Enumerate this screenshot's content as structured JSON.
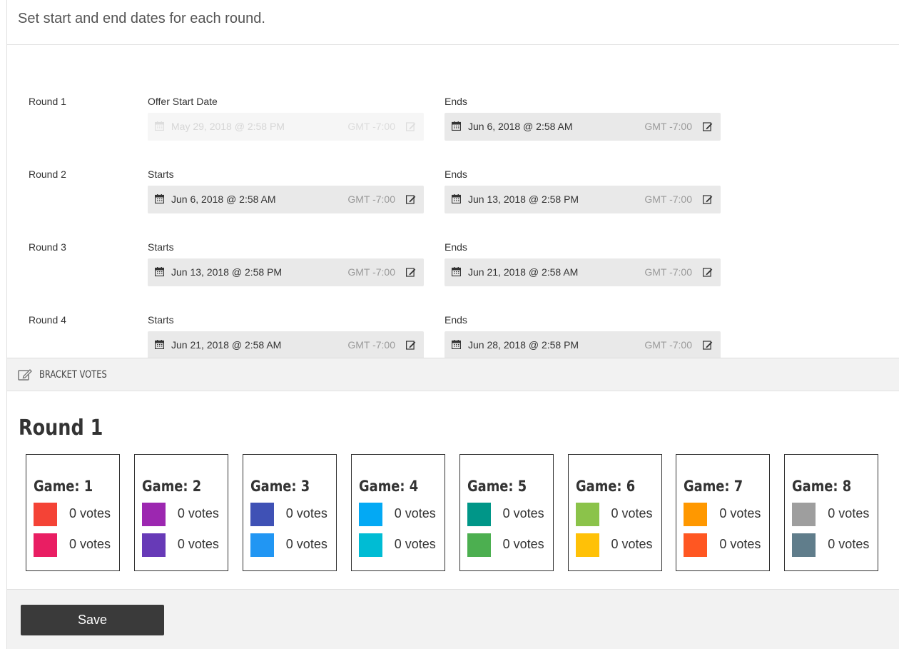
{
  "intro": {
    "text": "Set start and end dates for each round."
  },
  "rounds": [
    {
      "label": "Round 1",
      "start_label": "Offer Start Date",
      "start_date": "May 29, 2018 @ 2:58 PM",
      "start_tz": "GMT -7:00",
      "start_disabled": true,
      "end_label": "Ends",
      "end_date": "Jun 6, 2018 @ 2:58 AM",
      "end_tz": "GMT -7:00"
    },
    {
      "label": "Round 2",
      "start_label": "Starts",
      "start_date": "Jun 6, 2018 @ 2:58 AM",
      "start_tz": "GMT -7:00",
      "end_label": "Ends",
      "end_date": "Jun 13, 2018 @ 2:58 PM",
      "end_tz": "GMT -7:00"
    },
    {
      "label": "Round 3",
      "start_label": "Starts",
      "start_date": "Jun 13, 2018 @ 2:58 PM",
      "start_tz": "GMT -7:00",
      "end_label": "Ends",
      "end_date": "Jun 21, 2018 @ 2:58 AM",
      "end_tz": "GMT -7:00"
    },
    {
      "label": "Round 4",
      "start_label": "Starts",
      "start_date": "Jun 21, 2018 @ 2:58 AM",
      "start_tz": "GMT -7:00",
      "end_label": "Ends",
      "end_date": "Jun 28, 2018 @ 2:58 PM",
      "end_tz": "GMT -7:00"
    }
  ],
  "bracket_votes": {
    "header_title": "BRACKET VOTES",
    "header_icon": "edit-icon",
    "round_title": "Round 1",
    "games": [
      {
        "title": "Game: 1",
        "entries": [
          {
            "color": "#f44336",
            "votes": "0 votes"
          },
          {
            "color": "#e91e63",
            "votes": "0 votes"
          }
        ]
      },
      {
        "title": "Game: 2",
        "entries": [
          {
            "color": "#9c27b0",
            "votes": "0 votes"
          },
          {
            "color": "#673ab7",
            "votes": "0 votes"
          }
        ]
      },
      {
        "title": "Game: 3",
        "entries": [
          {
            "color": "#3f51b5",
            "votes": "0 votes"
          },
          {
            "color": "#2196f3",
            "votes": "0 votes"
          }
        ]
      },
      {
        "title": "Game: 4",
        "entries": [
          {
            "color": "#03a9f4",
            "votes": "0 votes"
          },
          {
            "color": "#00bcd4",
            "votes": "0 votes"
          }
        ]
      },
      {
        "title": "Game: 5",
        "entries": [
          {
            "color": "#009688",
            "votes": "0 votes"
          },
          {
            "color": "#4caf50",
            "votes": "0 votes"
          }
        ]
      },
      {
        "title": "Game: 6",
        "entries": [
          {
            "color": "#8bc34a",
            "votes": "0 votes"
          },
          {
            "color": "#ffc107",
            "votes": "0 votes"
          }
        ]
      },
      {
        "title": "Game: 7",
        "entries": [
          {
            "color": "#ff9800",
            "votes": "0 votes"
          },
          {
            "color": "#ff5722",
            "votes": "0 votes"
          }
        ]
      },
      {
        "title": "Game: 8",
        "entries": [
          {
            "color": "#9e9e9e",
            "votes": "0 votes"
          },
          {
            "color": "#607d8b",
            "votes": "0 votes"
          }
        ]
      }
    ]
  },
  "footer": {
    "save_label": "Save"
  },
  "icons": {
    "calendar": "calendar-icon",
    "edit": "edit-icon"
  }
}
